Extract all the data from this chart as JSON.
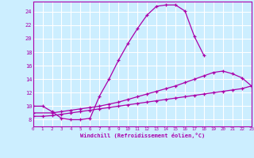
{
  "xlabel": "Windchill (Refroidissement éolien,°C)",
  "bg_color": "#cceeff",
  "grid_color": "#ffffff",
  "line_color": "#aa00aa",
  "xmin": 0,
  "xmax": 23,
  "ymin": 7,
  "ymax": 25.5,
  "yticks": [
    8,
    10,
    12,
    14,
    16,
    18,
    20,
    22,
    24
  ],
  "xticks": [
    0,
    1,
    2,
    3,
    4,
    5,
    6,
    7,
    8,
    9,
    10,
    11,
    12,
    13,
    14,
    15,
    16,
    17,
    18,
    19,
    20,
    21,
    22,
    23
  ],
  "line1_x": [
    0,
    1,
    2,
    3,
    4,
    5,
    6,
    7,
    8,
    9,
    10,
    11,
    12,
    13,
    14,
    15,
    16,
    17,
    18
  ],
  "line1_y": [
    10.0,
    10.0,
    9.2,
    8.2,
    8.0,
    8.0,
    8.2,
    11.5,
    14.0,
    16.8,
    19.3,
    21.5,
    23.5,
    24.8,
    25.0,
    25.0,
    24.1,
    20.3,
    17.5
  ],
  "line2_x": [
    0,
    2,
    3,
    4,
    5,
    6,
    7,
    8,
    9,
    10,
    11,
    12,
    13,
    14,
    15,
    16,
    17,
    18,
    19,
    20,
    21,
    22,
    23
  ],
  "line2_y": [
    9.0,
    9.0,
    9.2,
    9.4,
    9.6,
    9.8,
    10.0,
    10.3,
    10.6,
    11.0,
    11.4,
    11.8,
    12.2,
    12.6,
    13.0,
    13.5,
    14.0,
    14.5,
    15.0,
    15.2,
    14.8,
    14.2,
    13.0
  ],
  "line3_x": [
    0,
    1,
    2,
    3,
    4,
    5,
    6,
    7,
    8,
    9,
    10,
    11,
    12,
    13,
    14,
    15,
    16,
    17,
    18,
    19,
    20,
    21,
    22,
    23
  ],
  "line3_y": [
    8.5,
    8.5,
    8.6,
    8.8,
    9.0,
    9.2,
    9.4,
    9.6,
    9.8,
    10.0,
    10.2,
    10.4,
    10.6,
    10.8,
    11.0,
    11.2,
    11.4,
    11.6,
    11.8,
    12.0,
    12.2,
    12.4,
    12.6,
    13.0
  ]
}
